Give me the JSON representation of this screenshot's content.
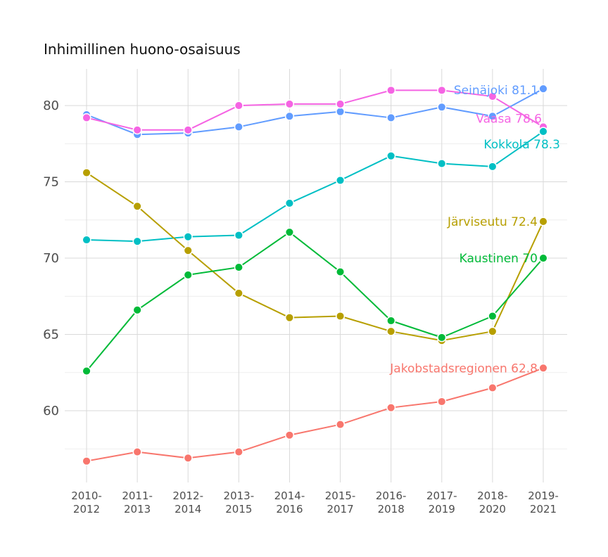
{
  "chart_data": {
    "type": "line",
    "title": "Inhimillinen huono-osaisuus",
    "xlabel": "",
    "ylabel": "",
    "categories": [
      [
        "2010-",
        "2012"
      ],
      [
        "2011-",
        "2013"
      ],
      [
        "2012-",
        "2014"
      ],
      [
        "2013-",
        "2015"
      ],
      [
        "2014-",
        "2016"
      ],
      [
        "2015-",
        "2017"
      ],
      [
        "2016-",
        "2018"
      ],
      [
        "2017-",
        "2019"
      ],
      [
        "2018-",
        "2020"
      ],
      [
        "2019-",
        "2021"
      ]
    ],
    "ylim": [
      55.3,
      82.4
    ],
    "yticks": [
      60,
      65,
      70,
      75,
      80
    ],
    "grid": true,
    "series": [
      {
        "name": "Seinäjoki",
        "end_label": "Seinäjoki 81.1",
        "color": "#619CFF",
        "values": [
          79.4,
          78.1,
          78.2,
          78.6,
          79.3,
          79.6,
          79.2,
          79.9,
          79.3,
          81.1
        ]
      },
      {
        "name": "Vaasa",
        "end_label": "Vaasa 78.6",
        "color": "#F564E3",
        "values": [
          79.2,
          78.4,
          78.4,
          80.0,
          80.1,
          80.1,
          81.0,
          81.0,
          80.6,
          78.6
        ]
      },
      {
        "name": "Kokkola",
        "end_label": "Kokkola 78.3",
        "color": "#00BFC4",
        "values": [
          71.2,
          71.1,
          71.4,
          71.5,
          73.6,
          75.1,
          76.7,
          76.2,
          76.0,
          78.3
        ]
      },
      {
        "name": "Järviseutu",
        "end_label": "Järviseutu 72.4",
        "color": "#B79F00",
        "values": [
          75.6,
          73.4,
          70.5,
          67.7,
          66.1,
          66.2,
          65.2,
          64.6,
          65.2,
          72.4
        ]
      },
      {
        "name": "Kaustinen",
        "end_label": "Kaustinen 70",
        "color": "#00BA38",
        "values": [
          62.6,
          66.6,
          68.9,
          69.4,
          71.7,
          69.1,
          65.9,
          64.8,
          66.2,
          70.0
        ]
      },
      {
        "name": "Jakobstadsregionen",
        "end_label": "Jakobstadsregionen 62.8",
        "color": "#F8766D",
        "values": [
          56.7,
          57.3,
          56.9,
          57.3,
          58.4,
          59.1,
          60.2,
          60.6,
          61.5,
          62.8
        ]
      }
    ]
  }
}
